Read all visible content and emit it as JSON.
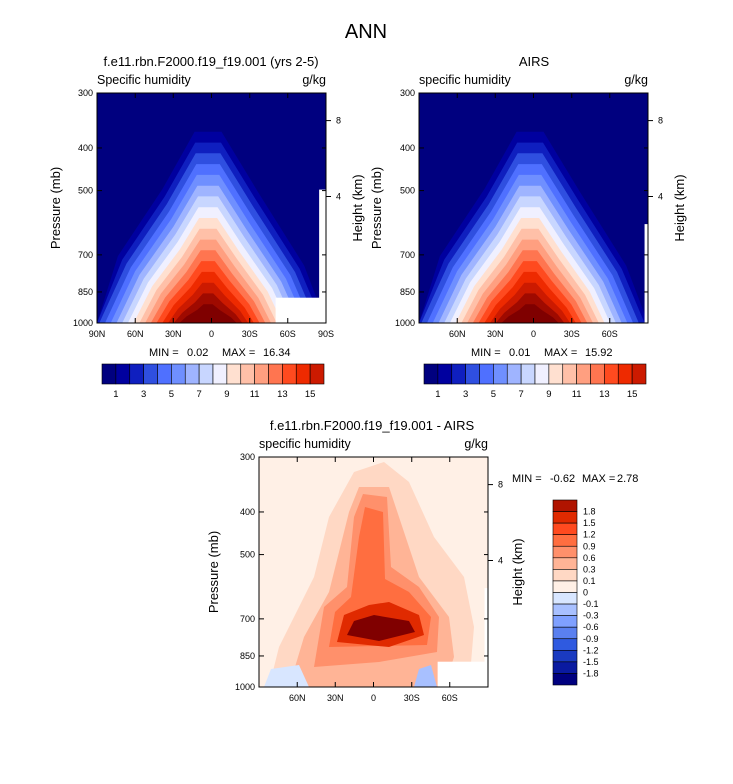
{
  "title": "ANN",
  "colors": {
    "bg_dark": "#000080",
    "abs_scale": [
      "#00007f",
      "#00009f",
      "#0f1fbf",
      "#2f4fe0",
      "#4f70ff",
      "#6f8fff",
      "#9fb4ff",
      "#c8d6ff",
      "#f0f0ff",
      "#ffe0d0",
      "#ffc0a8",
      "#ff9f80",
      "#ff7550",
      "#ff4a1f",
      "#ee2a00",
      "#cc1a00",
      "#9f0a00",
      "#7f0000"
    ],
    "diff_scale": [
      "#00007f",
      "#0a1aa0",
      "#1a3ac0",
      "#2f5ae0",
      "#5a80f0",
      "#7fa0ff",
      "#a8c0ff",
      "#d8e6ff",
      "#fff0e6",
      "#ffd8c4",
      "#ffb496",
      "#ff906b",
      "#ff6e40",
      "#ff4a1f",
      "#e02a00",
      "#b01400",
      "#800000"
    ],
    "missing": "#ffffff"
  },
  "chart_data": [
    {
      "type": "heatmap",
      "title": "f.e11.rbn.F2000.f19_f19.001 (yrs 2-5)",
      "left_label": "Specific humidity",
      "right_label": "g/kg",
      "ylabel": "Pressure (mb)",
      "y2label": "Height (km)",
      "y_ticks": [
        "300",
        "400",
        "500",
        "700",
        "850",
        "1000"
      ],
      "y2_ticks": [
        "8",
        "4"
      ],
      "x_ticks": [
        "90N",
        "60N",
        "30N",
        "0",
        "30S",
        "60S",
        "90S"
      ],
      "min_label": "MIN =",
      "min_value": "0.02",
      "max_label": "MAX =",
      "max_value": "16.34",
      "peak": 16.34,
      "colorbar_labels": [
        "1",
        "3",
        "5",
        "7",
        "9",
        "11",
        "13",
        "15"
      ]
    },
    {
      "type": "heatmap",
      "title": "AIRS",
      "left_label": "specific humidity",
      "right_label": "g/kg",
      "ylabel": "Pressure (mb)",
      "y2label": "Height (km)",
      "y_ticks": [
        "300",
        "400",
        "500",
        "700",
        "850",
        "1000"
      ],
      "y2_ticks": [
        "8",
        "4"
      ],
      "x_ticks": [
        "60N",
        "30N",
        "0",
        "30S",
        "60S"
      ],
      "min_label": "MIN =",
      "min_value": "0.01",
      "max_label": "MAX =",
      "max_value": "15.92",
      "peak": 15.92,
      "colorbar_labels": [
        "1",
        "3",
        "5",
        "7",
        "9",
        "11",
        "13",
        "15"
      ]
    },
    {
      "type": "heatmap",
      "title": "f.e11.rbn.F2000.f19_f19.001 - AIRS",
      "left_label": "specific humidity",
      "right_label": "g/kg",
      "ylabel": "Pressure (mb)",
      "y2label": "Height (km)",
      "y_ticks": [
        "300",
        "400",
        "500",
        "700",
        "850",
        "1000"
      ],
      "y2_ticks": [
        "8",
        "4"
      ],
      "x_ticks": [
        "60N",
        "30N",
        "0",
        "30S",
        "60S"
      ],
      "min_label": "MIN =",
      "min_value": "-0.62",
      "max_label": "MAX =",
      "max_value": "2.78",
      "colorbar_labels": [
        "1.8",
        "1.5",
        "1.2",
        "0.9",
        "0.6",
        "0.3",
        "0.1",
        "0",
        "-0.1",
        "-0.3",
        "-0.6",
        "-0.9",
        "-1.2",
        "-1.5",
        "-1.8"
      ]
    }
  ]
}
